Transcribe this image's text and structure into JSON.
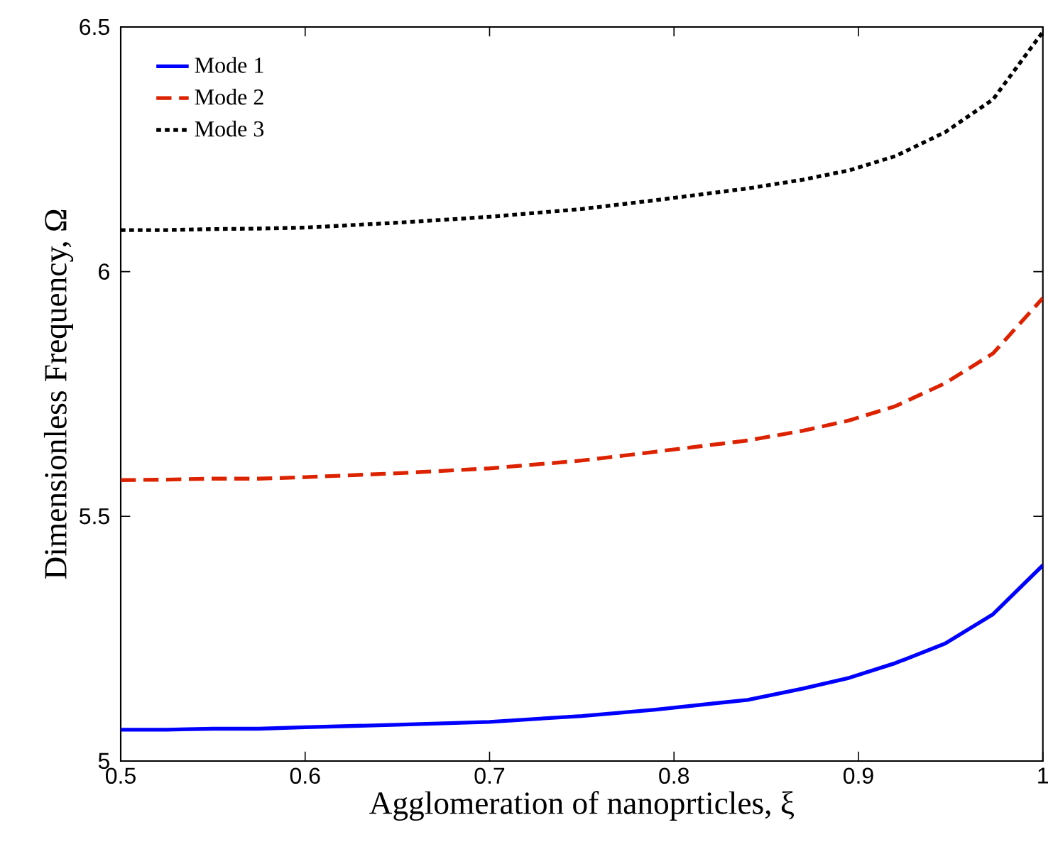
{
  "chart_data": {
    "type": "line",
    "xlabel": "Agglomeration of nanoprticles, ξ",
    "ylabel": "Dimensionless Frequency, Ω",
    "x": [
      0.5,
      0.525,
      0.55,
      0.575,
      0.6,
      0.65,
      0.7,
      0.75,
      0.79,
      0.84,
      0.87,
      0.895,
      0.92,
      0.947,
      0.973,
      1.0
    ],
    "series": [
      {
        "name": "Mode 1",
        "color": "#0000ff",
        "line_style": "solid",
        "values": [
          5.064,
          5.064,
          5.066,
          5.066,
          5.069,
          5.074,
          5.08,
          5.092,
          5.105,
          5.125,
          5.148,
          5.17,
          5.2,
          5.24,
          5.3,
          5.4
        ]
      },
      {
        "name": "Mode 2",
        "color": "#dd2200",
        "line_style": "dashed",
        "values": [
          5.574,
          5.575,
          5.577,
          5.577,
          5.58,
          5.588,
          5.598,
          5.614,
          5.632,
          5.655,
          5.675,
          5.696,
          5.725,
          5.772,
          5.833,
          5.946
        ]
      },
      {
        "name": "Mode 3",
        "color": "#000000",
        "line_style": "dotted",
        "values": [
          6.085,
          6.085,
          6.087,
          6.088,
          6.09,
          6.1,
          6.112,
          6.128,
          6.146,
          6.17,
          6.188,
          6.207,
          6.236,
          6.285,
          6.352,
          6.49
        ]
      }
    ],
    "xlim": [
      0.5,
      1.0
    ],
    "ylim": [
      5,
      6.5
    ],
    "xticks": [
      0.5,
      0.6,
      0.7,
      0.8,
      0.9,
      1
    ],
    "yticks": [
      5,
      5.5,
      6,
      6.5
    ],
    "grid": false,
    "legend": "top left",
    "marker": "none"
  }
}
